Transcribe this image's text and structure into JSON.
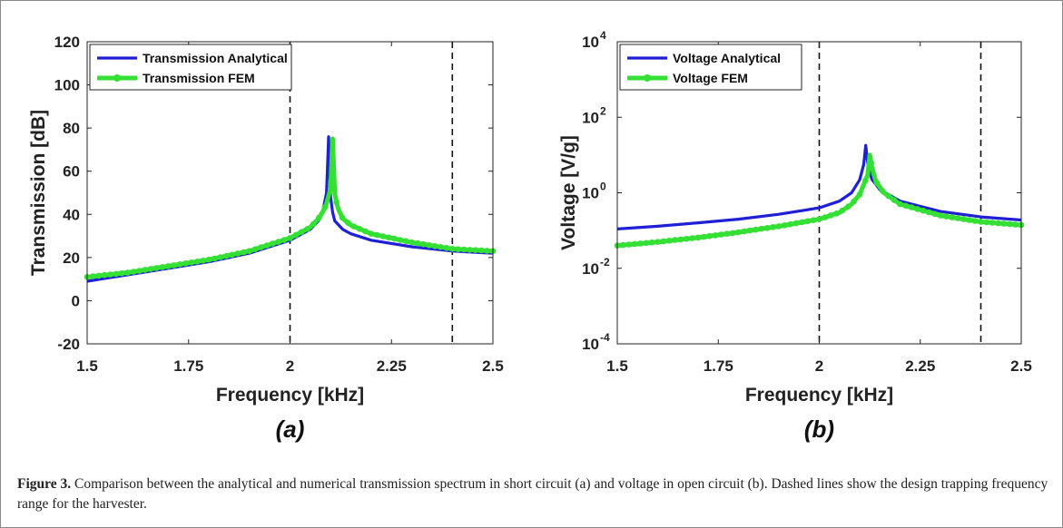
{
  "chart_data": [
    {
      "type": "line",
      "panel_label": "(a)",
      "xlabel": "Frequency [kHz]",
      "ylabel": "Transmission [dB]",
      "xlim": [
        1.5,
        2.5
      ],
      "ylim": [
        -20,
        120
      ],
      "yscale": "linear",
      "xticks": [
        "1.5",
        "1.75",
        "2",
        "2.25",
        "2.5"
      ],
      "yticks": [
        "-20",
        "0",
        "20",
        "40",
        "60",
        "80",
        "100",
        "120"
      ],
      "legend_position": "top-left",
      "vlines": [
        2.0,
        2.4
      ],
      "series": [
        {
          "name": "Transmission Analytical",
          "color": "#1f1fd6",
          "x": [
            1.5,
            1.6,
            1.7,
            1.8,
            1.9,
            2.0,
            2.05,
            2.07,
            2.08,
            2.09,
            2.095,
            2.1,
            2.105,
            2.11,
            2.13,
            2.15,
            2.2,
            2.3,
            2.4,
            2.5
          ],
          "y": [
            9,
            12,
            15,
            18,
            22,
            28,
            33,
            37,
            41,
            50,
            76,
            48,
            41,
            37,
            33,
            31,
            28,
            25,
            23,
            22
          ]
        },
        {
          "name": "Transmission FEM",
          "color": "#33e033",
          "x": [
            1.5,
            1.6,
            1.7,
            1.8,
            1.9,
            2.0,
            2.05,
            2.07,
            2.08,
            2.09,
            2.1,
            2.105,
            2.11,
            2.115,
            2.12,
            2.13,
            2.15,
            2.2,
            2.3,
            2.4,
            2.5
          ],
          "y": [
            11,
            13,
            16,
            19,
            23,
            29,
            34,
            38,
            41,
            45,
            52,
            75,
            50,
            45,
            42,
            38,
            35,
            31,
            27,
            24,
            23
          ]
        }
      ]
    },
    {
      "type": "line",
      "panel_label": "(b)",
      "xlabel": "Frequency [kHz]",
      "ylabel": "Voltage [V/g]",
      "xlim": [
        1.5,
        2.5
      ],
      "ylim": [
        0.0001,
        10000
      ],
      "yscale": "log",
      "xticks": [
        "1.5",
        "1.75",
        "2",
        "2.25",
        "2.5"
      ],
      "yticks": [
        {
          "base": "10",
          "exp": "-4"
        },
        {
          "base": "10",
          "exp": "-2"
        },
        {
          "base": "10",
          "exp": "0"
        },
        {
          "base": "10",
          "exp": "2"
        },
        {
          "base": "10",
          "exp": "4"
        }
      ],
      "legend_position": "top-left",
      "vlines": [
        2.0,
        2.4
      ],
      "series": [
        {
          "name": "Voltage Analytical",
          "color": "#1f1fd6",
          "x": [
            1.5,
            1.6,
            1.7,
            1.8,
            1.9,
            2.0,
            2.05,
            2.08,
            2.1,
            2.11,
            2.115,
            2.12,
            2.13,
            2.15,
            2.2,
            2.3,
            2.4,
            2.5
          ],
          "y": [
            0.11,
            0.13,
            0.16,
            0.2,
            0.27,
            0.4,
            0.6,
            1.0,
            2.2,
            5.5,
            18,
            6,
            2.3,
            1.2,
            0.6,
            0.32,
            0.23,
            0.19
          ]
        },
        {
          "name": "Voltage FEM",
          "color": "#33e033",
          "x": [
            1.5,
            1.6,
            1.7,
            1.8,
            1.9,
            2.0,
            2.05,
            2.08,
            2.1,
            2.12,
            2.125,
            2.13,
            2.14,
            2.16,
            2.2,
            2.3,
            2.4,
            2.5
          ],
          "y": [
            0.04,
            0.05,
            0.065,
            0.09,
            0.13,
            0.2,
            0.3,
            0.5,
            0.9,
            3.0,
            10,
            5.0,
            2.0,
            1.0,
            0.5,
            0.25,
            0.17,
            0.14
          ]
        }
      ]
    }
  ],
  "caption": {
    "label": "Figure 3.",
    "text": " Comparison between the analytical and numerical transmission spectrum in short circuit (a) and voltage in open circuit (b). Dashed lines show the design trapping frequency range for the harvester."
  }
}
